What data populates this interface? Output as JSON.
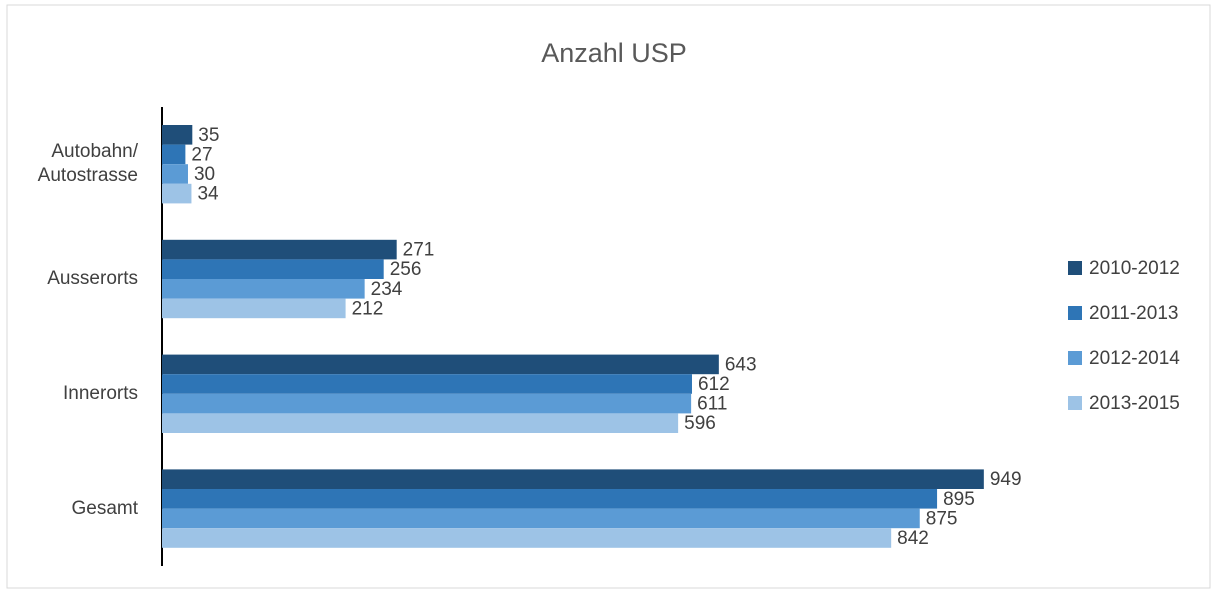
{
  "chart_data": {
    "type": "bar",
    "orientation": "horizontal",
    "title": "Anzahl USP",
    "categories": [
      "Autobahn/ Autostrasse",
      "Ausserorts",
      "Innerorts",
      "Gesamt"
    ],
    "series": [
      {
        "name": "2010-2012",
        "color": "#1f4e79",
        "values": [
          35,
          271,
          643,
          949
        ]
      },
      {
        "name": "2011-2013",
        "color": "#2e75b6",
        "values": [
          27,
          256,
          612,
          895
        ]
      },
      {
        "name": "2012-2014",
        "color": "#5b9bd5",
        "values": [
          30,
          234,
          611,
          875
        ]
      },
      {
        "name": "2013-2015",
        "color": "#9dc3e6",
        "values": [
          34,
          212,
          596,
          842
        ]
      }
    ],
    "xlim": [
      0,
      1000
    ],
    "legend": "right"
  }
}
